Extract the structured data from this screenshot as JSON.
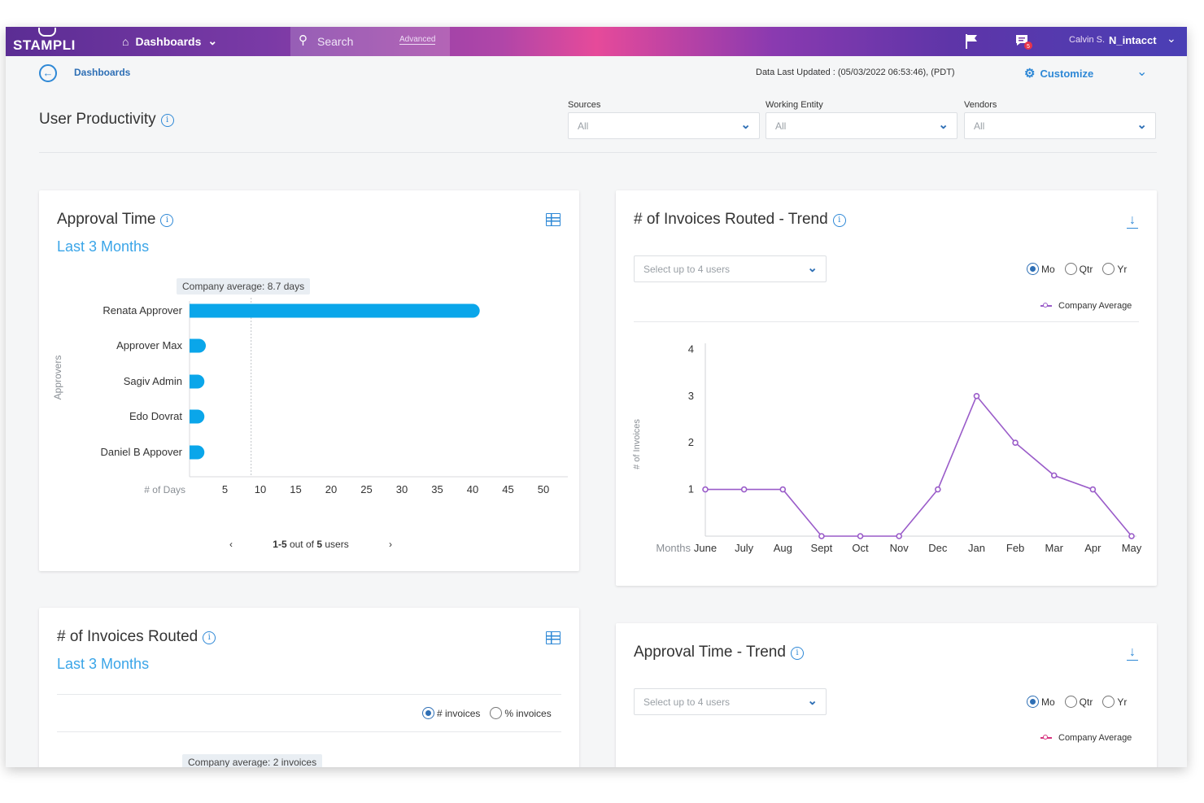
{
  "topbar": {
    "logo": "STAMPLI",
    "nav_dashboards": "Dashboards",
    "search_placeholder": "Search",
    "search_advanced": "Advanced",
    "notification_count": "5",
    "user_name": "Calvin S.",
    "company": "N_intacct"
  },
  "header": {
    "breadcrumb": "Dashboards",
    "data_updated": "Data Last Updated : (05/03/2022 06:53:46), (PDT)",
    "customize": "Customize",
    "page_title": "User Productivity"
  },
  "filters": [
    {
      "label": "Sources",
      "value": "All"
    },
    {
      "label": "Working Entity",
      "value": "All"
    },
    {
      "label": "Vendors",
      "value": "All"
    }
  ],
  "approval_time": {
    "title": "Approval Time",
    "subtitle": "Last 3 Months",
    "tooltip": "Company average: 8.7 days",
    "y_axis_title": "Approvers",
    "x_axis_title": "# of Days",
    "pager_range": "1-5",
    "pager_mid": " out of ",
    "pager_total": "5",
    "pager_suffix": " users"
  },
  "invoices_routed_trend": {
    "title": "# of Invoices Routed - Trend",
    "select_placeholder": "Select up to 4 users",
    "radios": [
      "Mo",
      "Qtr",
      "Yr"
    ],
    "legend": "Company Average",
    "y_axis_title": "# of Invoices",
    "x_axis_title": "Months"
  },
  "invoices_routed": {
    "title": "# of Invoices Routed",
    "subtitle": "Last 3 Months",
    "radio_count": "# invoices",
    "radio_percent": "% invoices",
    "tooltip": "Company average: 2 invoices"
  },
  "approval_time_trend": {
    "title": "Approval Time - Trend",
    "select_placeholder": "Select up to 4 users",
    "radios": [
      "Mo",
      "Qtr",
      "Yr"
    ],
    "legend": "Company Average"
  },
  "colors": {
    "accent": "#2e88d6",
    "bar": "#0aa6ea",
    "line": "#9a5cc9",
    "legend_pink": "#d6337f"
  },
  "chart_data": [
    {
      "type": "bar",
      "orientation": "horizontal",
      "categories": [
        "Renata Approver",
        "Approver Max",
        "Sagiv Admin",
        "Edo Dovrat",
        "Daniel B Appover"
      ],
      "values": [
        41,
        2.3,
        2.1,
        2.1,
        2.1
      ],
      "x_ticks": [
        5,
        10,
        15,
        20,
        25,
        30,
        35,
        40,
        45,
        50
      ],
      "xlim": [
        0,
        52
      ],
      "reference_line": 8.7,
      "xlabel": "# of Days",
      "ylabel": "Approvers"
    },
    {
      "type": "line",
      "x": [
        "June",
        "July",
        "Aug",
        "Sept",
        "Oct",
        "Nov",
        "Dec",
        "Jan",
        "Feb",
        "Mar",
        "Apr",
        "May"
      ],
      "series": [
        {
          "name": "Company Average",
          "values": [
            1,
            1,
            1,
            0,
            0,
            0,
            1,
            3,
            2,
            1.3,
            1,
            0
          ]
        }
      ],
      "y_ticks": [
        1,
        2,
        3,
        4
      ],
      "ylim": [
        0,
        4.2
      ],
      "xlabel": "Months",
      "ylabel": "# of Invoices"
    }
  ]
}
